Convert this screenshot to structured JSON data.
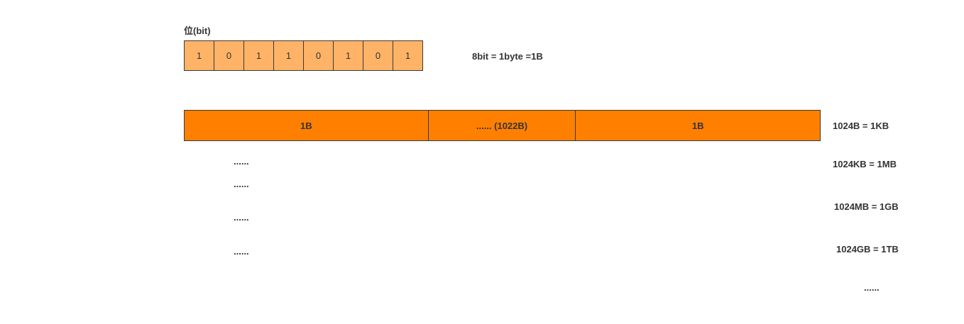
{
  "bit_title": "位(bit)",
  "bits": [
    "1",
    "0",
    "1",
    "1",
    "0",
    "1",
    "0",
    "1"
  ],
  "bit_equation": "8bit = 1byte =1B",
  "byte_cells": [
    "1B",
    "......  (1022B)",
    "1B"
  ],
  "ellipsis": "......",
  "conversions": [
    "1024B = 1KB",
    "1024KB = 1MB",
    "1024MB = 1GB",
    "1024GB = 1TB"
  ]
}
